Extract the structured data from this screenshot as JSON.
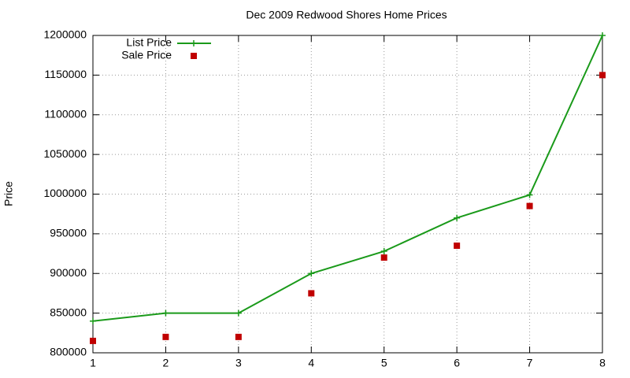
{
  "chart_data": {
    "type": "line",
    "title": "Dec 2009 Redwood Shores Home Prices",
    "y_label": "Price",
    "x": [
      1,
      2,
      3,
      4,
      5,
      6,
      7,
      8
    ],
    "series": [
      {
        "name": "List Price",
        "color": "#1a9a1a",
        "mode": "lines+points",
        "marker": "plus",
        "values": [
          840000,
          850000,
          850000,
          900000,
          928000,
          970000,
          999000,
          1200000
        ]
      },
      {
        "name": "Sale Price",
        "color": "#c00000",
        "mode": "points",
        "marker": "square",
        "values": [
          815000,
          820000,
          820000,
          875000,
          920000,
          935000,
          985000,
          1150000
        ]
      }
    ],
    "xlim": [
      1,
      8
    ],
    "xticks": [
      1,
      2,
      3,
      4,
      5,
      6,
      7,
      8
    ],
    "ylim": [
      800000,
      1200000
    ],
    "yticks": [
      800000,
      850000,
      900000,
      950000,
      1000000,
      1050000,
      1100000,
      1150000,
      1200000
    ],
    "grid": true,
    "legend": "top-left"
  }
}
